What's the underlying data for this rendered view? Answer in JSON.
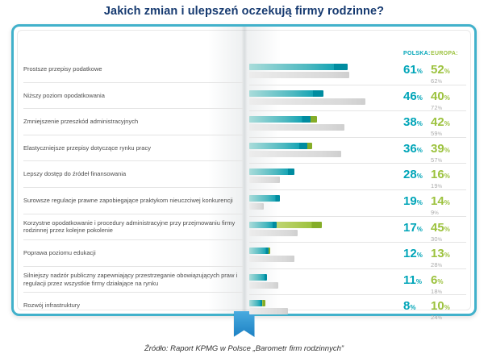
{
  "title": "Jakich zmian i ulepszeń oczekują firmy rodzinne?",
  "source": "Źródło: Raport KPMG w Polsce „Barometr firm rodzinnych”",
  "chart_data": {
    "type": "bar",
    "orientation": "horizontal",
    "title": "Jakich zmian i ulepszeń oczekują firmy rodzinne?",
    "xlim": [
      0,
      100
    ],
    "legend": {
      "polska_label": "POLSKA:",
      "europa_label": "EUROPA:"
    },
    "colors": {
      "title": "#163a70",
      "polska": "#00a5b8",
      "europa": "#9cc23e",
      "secondary_gray": "#d9d9d9",
      "book_border": "#41b1cb",
      "ribbon": "#1c80c3"
    },
    "rows": [
      {
        "label": "Prostsze przepisy podatkowe",
        "polska": 61,
        "europa": 52,
        "gray": 62
      },
      {
        "label": "Niższy poziom opodatkowania",
        "polska": 46,
        "europa": 40,
        "gray": 72
      },
      {
        "label": "Zmniejszenie przeszkód administracyjnych",
        "polska": 38,
        "europa": 42,
        "gray": 59
      },
      {
        "label": "Elastyczniejsze przepisy dotyczące rynku pracy",
        "polska": 36,
        "europa": 39,
        "gray": 57
      },
      {
        "label": "Lepszy dostęp do źródeł finansowania",
        "polska": 28,
        "europa": 16,
        "gray": 19
      },
      {
        "label": "Surowsze regulacje prawne zapobiegające praktykom nieuczciwej konkurencji",
        "polska": 19,
        "europa": 14,
        "gray": 9
      },
      {
        "label": "Korzystne opodatkowanie i procedury administracyjne przy przejmowaniu firmy rodzinnej przez kolejne pokolenie",
        "polska": 17,
        "europa": 45,
        "gray": 30
      },
      {
        "label": "Poprawa poziomu edukacji",
        "polska": 12,
        "europa": 13,
        "gray": 28
      },
      {
        "label": "Silniejszy nadzór publiczny zapewniający przestrzeganie obowiązujących praw i regulacji przez wszystkie firmy działające na rynku",
        "polska": 11,
        "europa": 6,
        "gray": 18
      },
      {
        "label": "Rozwój infrastruktury",
        "polska": 8,
        "europa": 10,
        "gray": 24
      }
    ]
  }
}
